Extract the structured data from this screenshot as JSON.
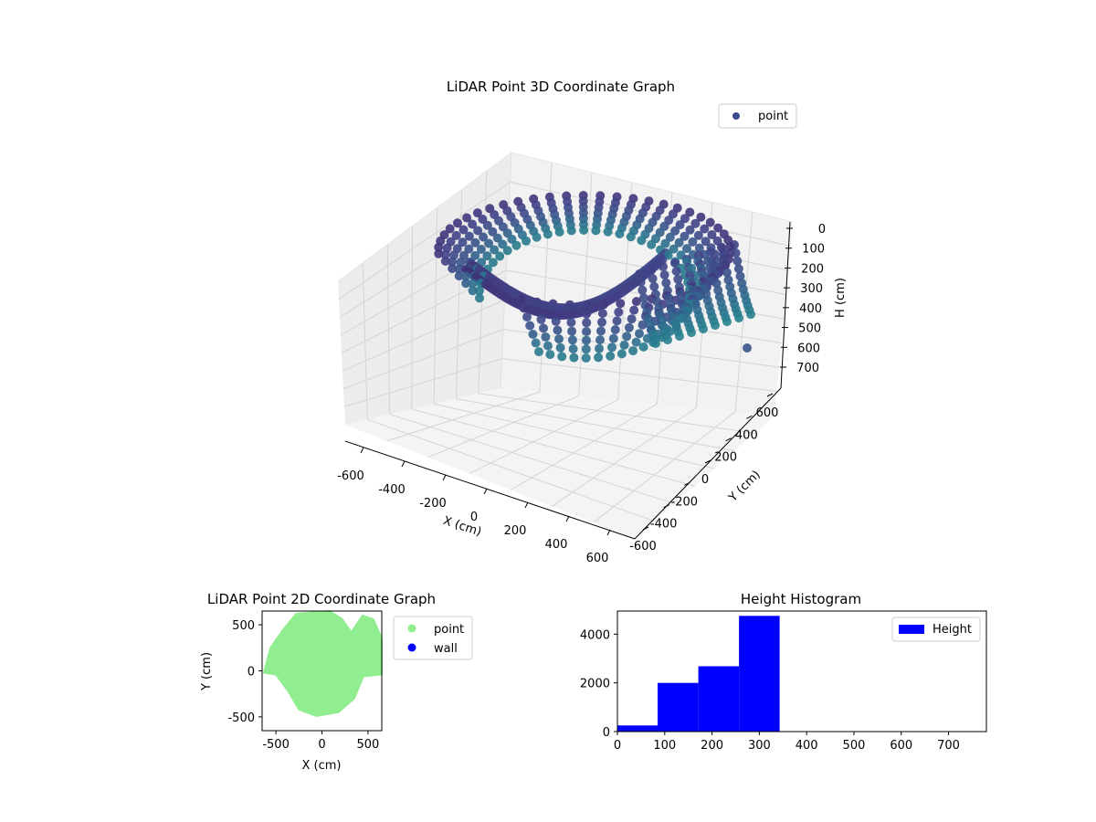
{
  "chart_data": [
    {
      "type": "scatter3d",
      "title": "LiDAR Point 3D Coordinate Graph",
      "xlabel": "X (cm)",
      "ylabel": "Y (cm)",
      "zlabel": "H (cm)",
      "xlim": [
        -650,
        650
      ],
      "ylim": [
        -650,
        650
      ],
      "zlim": [
        750,
        0
      ],
      "x_ticks": [
        -600,
        -400,
        -200,
        0,
        200,
        400,
        600
      ],
      "y_ticks": [
        -600,
        -400,
        -200,
        0,
        200,
        400,
        600
      ],
      "z_ticks": [
        0,
        100,
        200,
        300,
        400,
        500,
        600,
        700
      ],
      "grid": true,
      "legend": {
        "position": "upper-right",
        "entries": [
          "point"
        ]
      },
      "series": [
        {
          "name": "point",
          "color": "#3b4a8c",
          "colormap": "viridis-dark",
          "description_shape": "ring of vertical scan arcs around origin"
        }
      ]
    },
    {
      "type": "scatter",
      "title": "LiDAR Point 2D Coordinate Graph",
      "xlabel": "X (cm)",
      "ylabel": "Y (cm)",
      "xlim": [
        -650,
        650
      ],
      "ylim": [
        -650,
        650
      ],
      "x_ticks": [
        -500,
        0,
        500
      ],
      "y_ticks": [
        -500,
        0,
        500
      ],
      "legend": {
        "position": "outside-right",
        "entries": [
          "point",
          "wall"
        ]
      },
      "series": [
        {
          "name": "point",
          "color": "#90ee90"
        },
        {
          "name": "wall",
          "color": "#0000ff"
        }
      ]
    },
    {
      "type": "bar",
      "title": "Height Histogram",
      "xlabel": "",
      "ylabel": "",
      "xlim": [
        0,
        780
      ],
      "ylim": [
        0,
        4950
      ],
      "x_ticks": [
        0,
        100,
        200,
        300,
        400,
        500,
        600,
        700
      ],
      "y_ticks": [
        0,
        2000,
        4000
      ],
      "legend": {
        "position": "upper-right",
        "entries": [
          "Height"
        ]
      },
      "series": [
        {
          "name": "Height",
          "color": "#0000ff",
          "bins": [
            {
              "x0": 0,
              "x1": 85,
              "count": 250
            },
            {
              "x0": 85,
              "x1": 171,
              "count": 2000
            },
            {
              "x0": 171,
              "x1": 257,
              "count": 2680
            },
            {
              "x0": 257,
              "x1": 343,
              "count": 4750
            }
          ]
        }
      ]
    }
  ]
}
